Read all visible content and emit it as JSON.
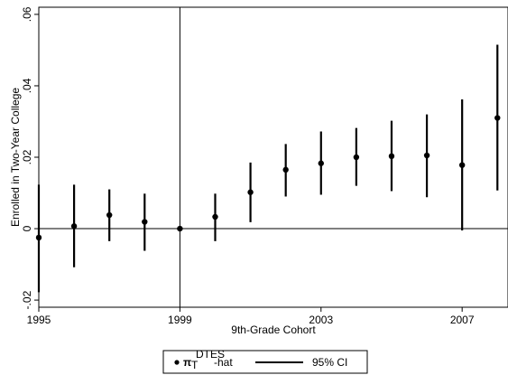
{
  "chart_data": {
    "type": "scatter",
    "title": "",
    "xlabel": "9th-Grade Cohort",
    "ylabel": "Enrolled in Two-Year College",
    "xlim": [
      1995,
      2008.3
    ],
    "ylim": [
      -0.022,
      0.062
    ],
    "x_ticks": [
      1995,
      1999,
      2003,
      2007
    ],
    "y_ticks": [
      -0.02,
      0,
      0.02,
      0.04,
      0.06
    ],
    "y_tick_labels": [
      "-.02",
      "0",
      ".02",
      ".04",
      ".06"
    ],
    "reference_lines": {
      "x": 1999,
      "y": 0
    },
    "grid": false,
    "legend_position": "bottom",
    "series": [
      {
        "name": "-hat",
        "x": [
          1995,
          1996,
          1997,
          1998,
          1999,
          2000,
          2001,
          2002,
          2003,
          2004,
          2005,
          2006,
          2007,
          2008
        ],
        "y": [
          -0.0025,
          0.0007,
          0.0038,
          0.0019,
          0.0,
          0.0033,
          0.0102,
          0.0165,
          0.0183,
          0.02,
          0.0203,
          0.0205,
          0.0178,
          0.031
        ],
        "lower": [
          -0.0178,
          -0.0108,
          -0.0035,
          -0.0062,
          0.0,
          -0.0035,
          0.0018,
          0.009,
          0.0095,
          0.012,
          0.0105,
          0.0088,
          -0.0005,
          0.0107
        ],
        "upper": [
          0.0123,
          0.0123,
          0.011,
          0.0098,
          0.0,
          0.0098,
          0.0185,
          0.0237,
          0.0272,
          0.0282,
          0.0302,
          0.032,
          0.0362,
          0.0515
        ]
      }
    ],
    "legend": {
      "symbol_main": "π",
      "symbol_sub": "T",
      "symbol_sup": "DTES",
      "point_suffix": "-hat",
      "ci_label": "95% CI"
    }
  }
}
